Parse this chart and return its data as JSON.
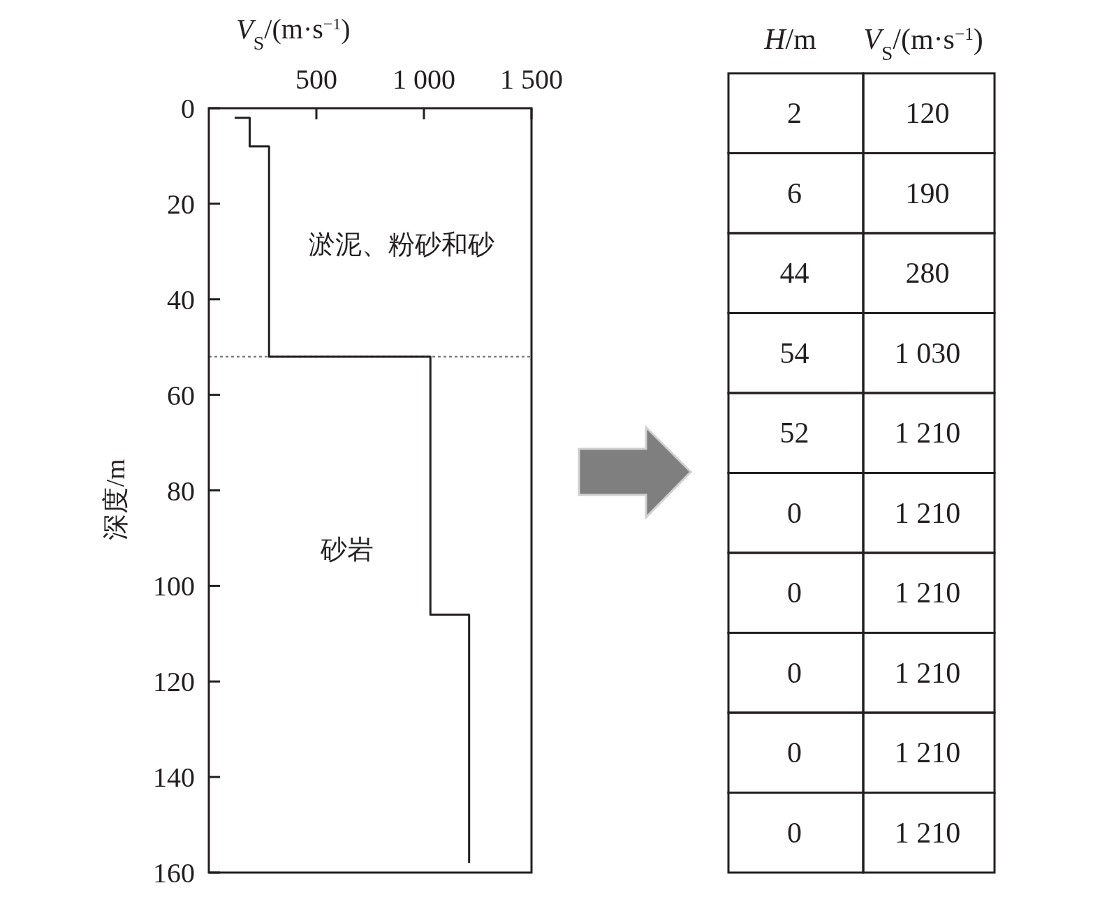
{
  "chart_data": [
    {
      "type": "line",
      "xlabel": "*V*$_{S}$/(m·s$^{−1}$)",
      "ylabel": "深度/m",
      "x": [
        120,
        190,
        190,
        280,
        280,
        1030,
        1030,
        1210,
        1210
      ],
      "values": [
        2,
        2,
        8,
        8,
        52,
        52,
        106,
        106,
        158
      ],
      "color": "#231f20",
      "xlim": [
        0,
        1500
      ],
      "xticks": [
        500,
        {
          "value": 1000,
          "label": "1 000"
        },
        {
          "value": 1500,
          "label": "1 500"
        }
      ],
      "ylim": [
        160,
        0
      ],
      "yticks": [
        0,
        20,
        40,
        60,
        80,
        100,
        120,
        140,
        160
      ],
      "ref_lines": [
        {
          "axis": "y",
          "value": 52,
          "color": "#808080",
          "line_style": "dotted"
        }
      ],
      "annotations": [
        "淤泥、粉砂和砂",
        "砂岩"
      ]
    },
    {
      "type": "other",
      "categories": [
        "*H*/m",
        "*V*$_{S}$/(m·s$^{−1}$)"
      ],
      "cell_labels": [
        [
          "2",
          "120"
        ],
        [
          "6",
          "190"
        ],
        [
          "44",
          "280"
        ],
        [
          "54",
          "1 030"
        ],
        [
          "52",
          "1 210"
        ],
        [
          "0",
          "1 210"
        ],
        [
          "0",
          "1 210"
        ],
        [
          "0",
          "1 210"
        ],
        [
          "0",
          "1 210"
        ],
        [
          "0",
          "1 210"
        ]
      ]
    }
  ]
}
